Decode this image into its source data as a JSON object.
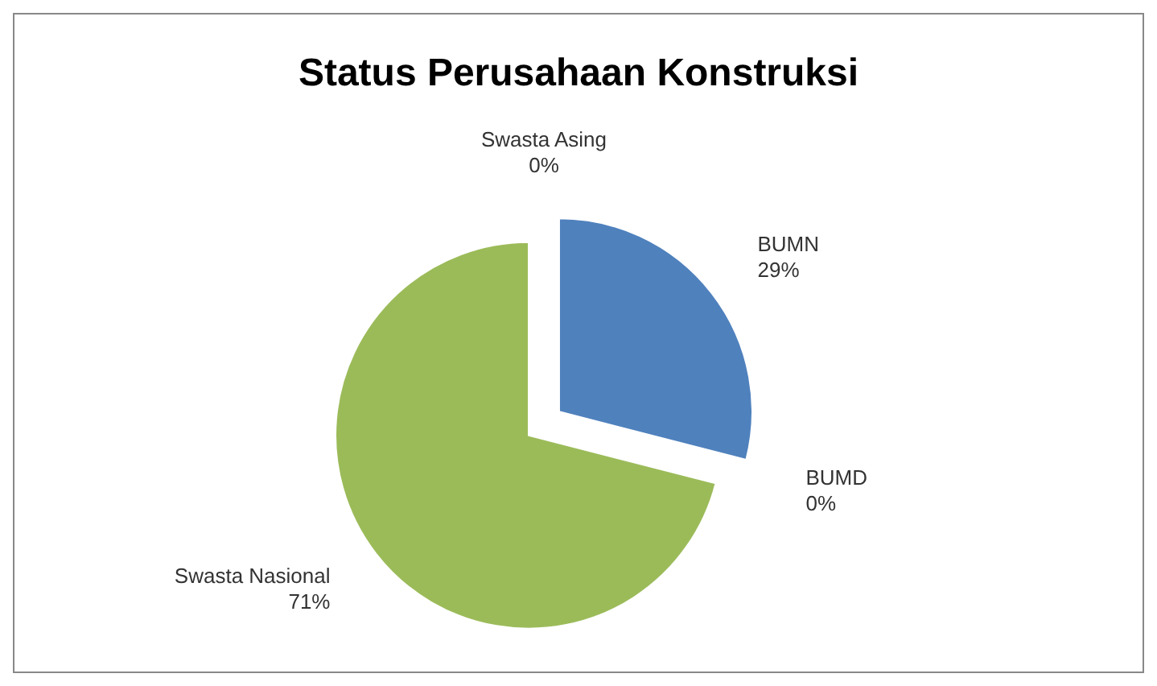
{
  "chart_data": {
    "type": "pie",
    "title": "Status Perusahaan Konstruksi",
    "categories": [
      "BUMN",
      "BUMD",
      "Swasta Nasional",
      "Swasta Asing"
    ],
    "values": [
      29,
      0,
      71,
      0
    ],
    "colors": [
      "#4f81bd",
      "#7b2621",
      "#9bbb59",
      "#8064a2"
    ],
    "value_labels": [
      "29%",
      "0%",
      "71%",
      "0%"
    ]
  }
}
